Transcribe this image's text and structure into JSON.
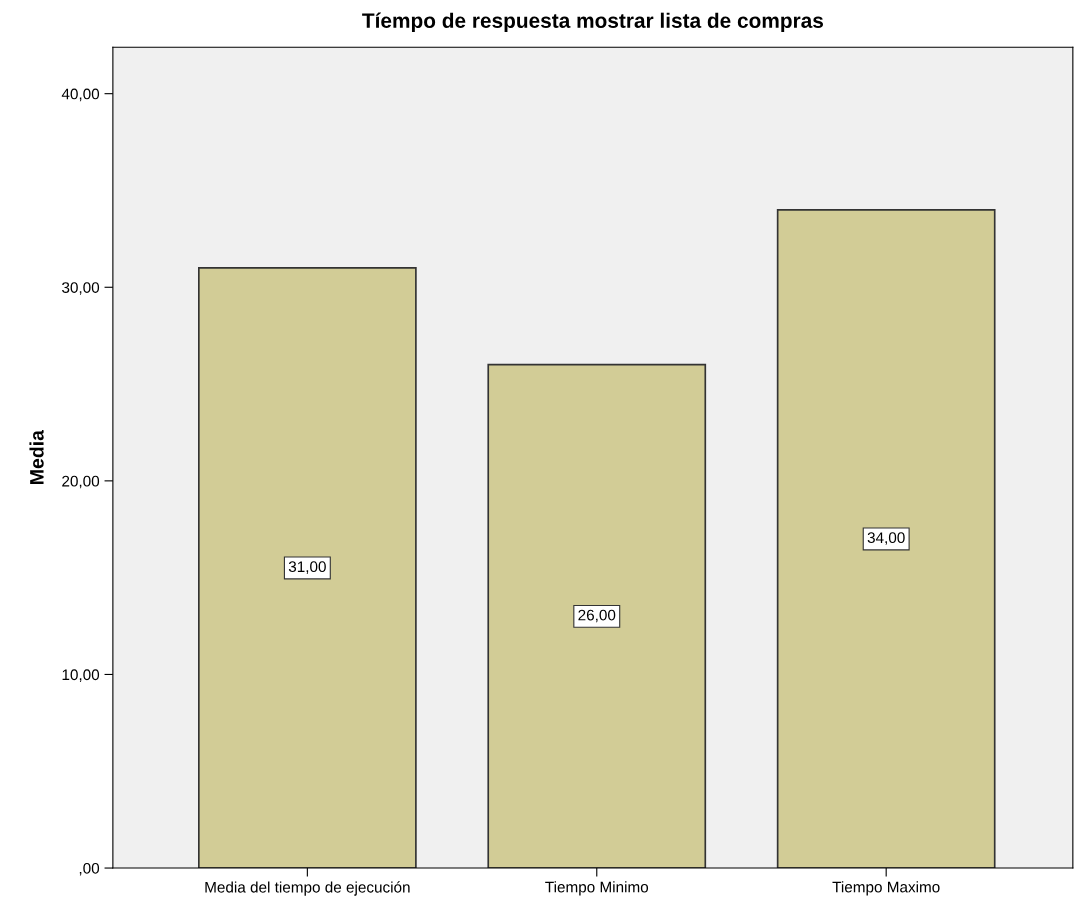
{
  "chart_data": {
    "type": "bar",
    "title": "Tíempo de respuesta mostrar lista de compras",
    "ylabel": "Media",
    "categories": [
      "Media del tiempo de ejecución",
      "Tiempo Minimo",
      "Tiempo Maximo"
    ],
    "values": [
      31,
      26,
      34
    ],
    "value_labels": [
      "31,00",
      "26,00",
      "34,00"
    ],
    "color": "#d2cc96",
    "ylim": [
      0,
      42.4
    ],
    "yticks": [
      {
        "value": 0,
        "label": ",00"
      },
      {
        "value": 10,
        "label": "10,00"
      },
      {
        "value": 20,
        "label": "20,00"
      },
      {
        "value": 30,
        "label": "30,00"
      },
      {
        "value": 40,
        "label": "40,00"
      }
    ],
    "grid": false,
    "legend": false
  }
}
